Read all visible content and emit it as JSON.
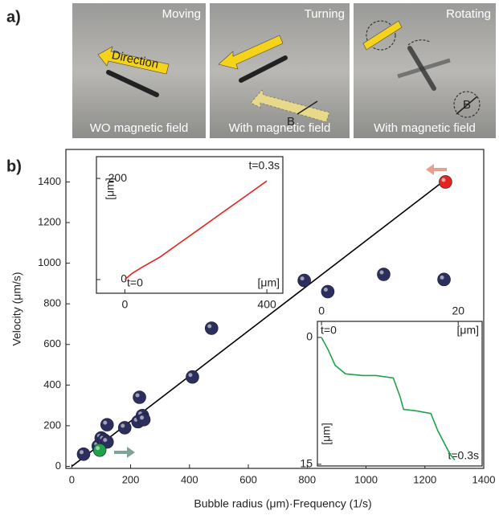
{
  "panel_a": {
    "label": "a)",
    "panels": [
      {
        "title": "Moving",
        "caption": "WO magnetic field",
        "annotations": [
          "Direction"
        ]
      },
      {
        "title": "Turning",
        "caption": "With magnetic field",
        "annotations": [
          "B"
        ]
      },
      {
        "title": "Rotating",
        "caption": "With magnetic field",
        "annotations": [
          "B"
        ]
      }
    ]
  },
  "panel_b": {
    "label": "b)"
  },
  "chart_data": [
    {
      "type": "scatter",
      "x_label": "Bubble radius (μm)·Frequency (1/s)",
      "y_label": "Velocity (μm/s)",
      "xlim": [
        -20,
        1400
      ],
      "ylim": [
        -10,
        1560
      ],
      "xticks": [
        0,
        200,
        400,
        600,
        800,
        1000,
        1200,
        1400
      ],
      "yticks": [
        0,
        200,
        400,
        600,
        800,
        1000,
        1200,
        1400
      ],
      "series": [
        {
          "color": "#2c2f5e",
          "x": [
            40,
            90,
            100,
            110,
            120,
            120,
            180,
            225,
            230,
            240,
            245,
            410,
            475,
            790,
            870,
            1060,
            1265
          ],
          "values": [
            60,
            100,
            140,
            130,
            120,
            205,
            190,
            220,
            340,
            250,
            230,
            440,
            680,
            915,
            860,
            945,
            920
          ]
        },
        {
          "color": "#1fa24a",
          "x": [
            95
          ],
          "values": [
            80
          ]
        },
        {
          "color": "#e52420",
          "x": [
            1270
          ],
          "values": [
            1400
          ]
        }
      ],
      "fit_line": {
        "color": "#000000",
        "x": [
          0,
          1260
        ],
        "values": [
          0,
          1400
        ]
      }
    },
    {
      "type": "line",
      "x_label": "[μm]",
      "y_label": "[μm]",
      "annotations": [
        "t=0.3s",
        "t=0"
      ],
      "xlim": [
        -80,
        445
      ],
      "ylim": [
        -27,
        243
      ],
      "xticks": [
        0,
        400
      ],
      "yticks": [
        0,
        200
      ],
      "color": "#e52420",
      "x": [
        0,
        20,
        50,
        100,
        150,
        200,
        250,
        300,
        350,
        400
      ],
      "values": [
        0,
        12,
        25,
        45,
        70,
        95,
        120,
        145,
        170,
        195
      ]
    },
    {
      "type": "line",
      "x_label": "[μm]",
      "y_label": "[μm]",
      "annotations": [
        "t=0",
        "t=0.3s"
      ],
      "xlim": [
        -0.6,
        23.5
      ],
      "ylim": [
        15.2,
        -1.9
      ],
      "xticks": [
        0,
        20
      ],
      "yticks": [
        0,
        15
      ],
      "color": "#1fa24a",
      "x": [
        0,
        1,
        2,
        3.5,
        6,
        8,
        10.5,
        11.5,
        12,
        14,
        16,
        17,
        18.8,
        19.5
      ],
      "values": [
        0,
        1.5,
        3.3,
        4.3,
        4.5,
        4.5,
        4.8,
        7,
        8.5,
        8.7,
        9,
        11,
        13.8,
        14.5
      ]
    }
  ]
}
